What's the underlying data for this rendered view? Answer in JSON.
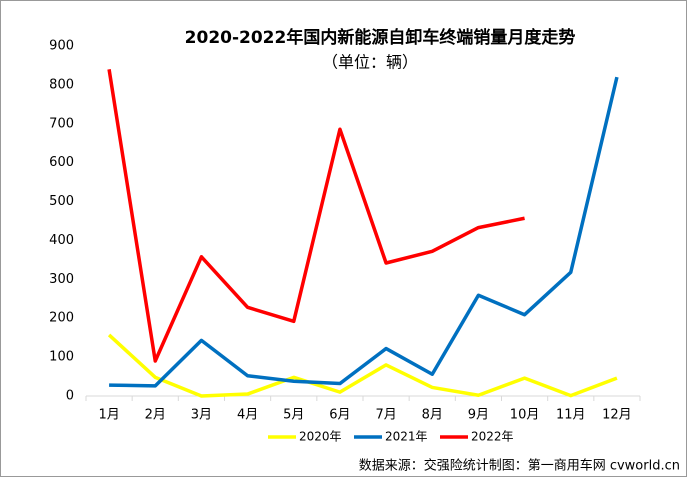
{
  "chart_data": {
    "type": "line",
    "title": "2020-2022年国内新能源自卸车终端销量月度走势",
    "subtitle": "（单位：辆）",
    "source": "数据来源：交强险统计制图：第一商用车网 cvworld.cn",
    "categories": [
      "1月",
      "2月",
      "3月",
      "4月",
      "5月",
      "6月",
      "7月",
      "8月",
      "9月",
      "10月",
      "11月",
      "12月"
    ],
    "series": [
      {
        "name": "2020年",
        "color": "#ffff00",
        "values": [
          157,
          48,
          0,
          5,
          48,
          10,
          80,
          22,
          2,
          46,
          1,
          46
        ]
      },
      {
        "name": "2021年",
        "color": "#0070c0",
        "values": [
          28,
          26,
          143,
          52,
          38,
          32,
          122,
          56,
          259,
          209,
          318,
          820
        ]
      },
      {
        "name": "2022年",
        "color": "#ff0000",
        "values": [
          840,
          90,
          358,
          228,
          192,
          686,
          342,
          372,
          433,
          457,
          null,
          null
        ]
      }
    ],
    "ylim": [
      0,
      900
    ],
    "yticks": [
      0,
      100,
      200,
      300,
      400,
      500,
      600,
      700,
      800,
      900
    ],
    "legend": "bottom"
  }
}
